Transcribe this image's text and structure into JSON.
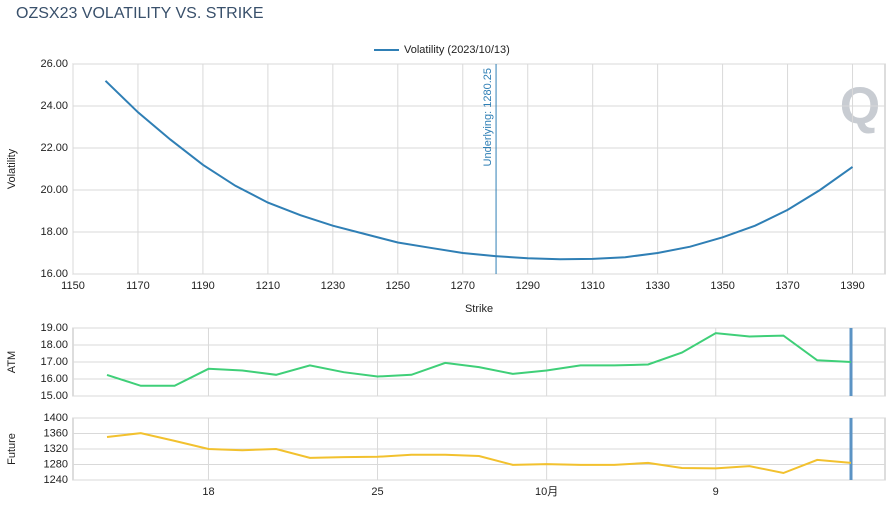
{
  "title": "OZSX23 VOLATILITY VS. STRIKE",
  "logo": "Q",
  "chart_data": [
    {
      "type": "line",
      "xlabel": "Strike",
      "ylabel": "Volatility",
      "x": [
        1160,
        1170,
        1180,
        1190,
        1200,
        1210,
        1220,
        1230,
        1240,
        1250,
        1260,
        1270,
        1280,
        1290,
        1300,
        1310,
        1320,
        1330,
        1340,
        1350,
        1360,
        1370,
        1380,
        1390
      ],
      "series": [
        {
          "name": "Volatility (2023/10/13)",
          "color": "#2f7fb5",
          "values": [
            25.2,
            23.7,
            22.4,
            21.2,
            20.2,
            19.4,
            18.8,
            18.3,
            17.9,
            17.5,
            17.25,
            17.0,
            16.85,
            16.75,
            16.7,
            16.72,
            16.8,
            17.0,
            17.3,
            17.75,
            18.3,
            19.05,
            20.0,
            21.1
          ]
        }
      ],
      "xlim": [
        1150,
        1400
      ],
      "xticks": [
        1150,
        1170,
        1190,
        1210,
        1230,
        1250,
        1270,
        1290,
        1310,
        1330,
        1350,
        1370,
        1390
      ],
      "ylim": [
        16,
        26
      ],
      "yticks": [
        {
          "value": 16,
          "label": "16.00"
        },
        {
          "value": 18,
          "label": "18.00"
        },
        {
          "value": 20,
          "label": "20.00"
        },
        {
          "value": 22,
          "label": "22.00"
        },
        {
          "value": 24,
          "label": "24.00"
        },
        {
          "value": 26,
          "label": "26.00"
        }
      ],
      "annotation": {
        "text": "Underlying: 1280.25",
        "x": 1280.25
      },
      "grid": true,
      "legend": "top"
    },
    {
      "type": "line",
      "ylabel": "ATM",
      "series": [
        {
          "color": "#3fcf78",
          "values": [
            16.24,
            15.6,
            15.6,
            16.6,
            16.5,
            16.25,
            16.8,
            16.4,
            16.15,
            16.25,
            16.95,
            16.7,
            16.3,
            16.5,
            16.8,
            16.8,
            16.85,
            17.55,
            18.7,
            18.5,
            18.55,
            17.1,
            17.0
          ]
        }
      ],
      "ylim": [
        15,
        19
      ],
      "yticks": [
        {
          "value": 15,
          "label": "15.00"
        },
        {
          "value": 16,
          "label": "16.00"
        },
        {
          "value": 17,
          "label": "17.00"
        },
        {
          "value": 18,
          "label": "18.00"
        },
        {
          "value": 19,
          "label": "19.00"
        }
      ],
      "grid": true
    },
    {
      "type": "line",
      "ylabel": "Future",
      "categories": [
        null,
        null,
        null,
        "18",
        null,
        null,
        null,
        null,
        "25",
        null,
        null,
        null,
        null,
        "10月",
        null,
        null,
        null,
        null,
        "9",
        null,
        null,
        null,
        null
      ],
      "series": [
        {
          "color": "#f2c12e",
          "values": [
            1351,
            1361,
            1341,
            1320,
            1317,
            1320,
            1297,
            1299,
            1300,
            1305,
            1305,
            1302,
            1279,
            1281,
            1279,
            1279,
            1284,
            1271,
            1270,
            1276,
            1258,
            1292,
            1284
          ]
        }
      ],
      "ylim": [
        1240,
        1400
      ],
      "yticks": [
        1240,
        1280,
        1320,
        1360,
        1400
      ],
      "grid": true
    }
  ]
}
